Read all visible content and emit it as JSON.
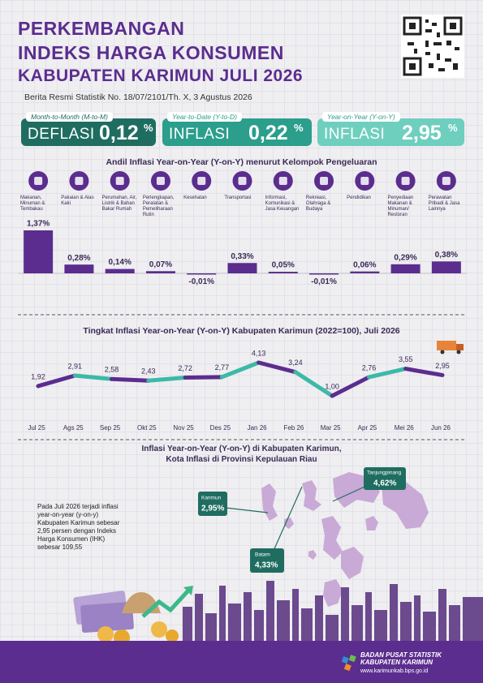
{
  "header": {
    "title_lines": [
      "PERKEMBANGAN",
      "INDEKS HARGA KONSUMEN",
      "KABUPATEN KARIMUN JULI 2026"
    ],
    "subtitle": "Berita Resmi Statistik No. 18/07/2101/Th. X, 3 Agustus 2026"
  },
  "indicators": [
    {
      "period": "Month-to-Month (M-to-M)",
      "status": "DEFLASI",
      "value": "0,12",
      "unit": "%"
    },
    {
      "period": "Year-to-Date (Y-to-D)",
      "status": "INFLASI",
      "value": "0,22",
      "unit": "%"
    },
    {
      "period": "Year-on-Year (Y-on-Y)",
      "status": "INFLASI",
      "value": "2,95",
      "unit": "%"
    }
  ],
  "chart_data": [
    {
      "type": "bar",
      "title": "Andil Inflasi Year-on-Year (Y-on-Y) menurut Kelompok Pengeluaran",
      "categories": [
        "Makanan, Minuman & Tembakau",
        "Pakaian & Alas Kaki",
        "Perumahan, Air, Listrik & Bahan Bakar Rumah",
        "Perlengkapan, Peralatan & Pemeliharaan Rutin",
        "Kesehatan",
        "Transportasi",
        "Informasi, Komunikasi & Jasa Keuangan",
        "Rekreasi, Olahraga & Budaya",
        "Pendidikan",
        "Penyediaan Makanan & Minuman/ Restoran",
        "Perawatan Pribadi & Jasa Lainnya"
      ],
      "values": [
        1.37,
        0.28,
        0.14,
        0.07,
        -0.01,
        0.33,
        0.05,
        -0.01,
        0.06,
        0.29,
        0.38
      ],
      "value_labels": [
        "1,37%",
        "0,28%",
        "0,14%",
        "0,07%",
        "-0,01%",
        "0,33%",
        "0,05%",
        "-0,01%",
        "0,06%",
        "0,29%",
        "0,38%"
      ],
      "color": "#5b2d8e"
    },
    {
      "type": "line",
      "title": "Tingkat Inflasi Year-on-Year (Y-on-Y) Kabupaten Karimun (2022=100), Juli 2026",
      "categories": [
        "Jul 25",
        "Ags 25",
        "Sep 25",
        "Okt 25",
        "Nov 25",
        "Des 25",
        "Jan 26",
        "Feb 26",
        "Mar 25",
        "Apr 25",
        "Mei 26",
        "Jun 26"
      ],
      "values": [
        1.92,
        2.91,
        2.58,
        2.43,
        2.72,
        2.77,
        4.13,
        3.24,
        1.0,
        2.76,
        3.55,
        2.95
      ],
      "value_labels": [
        "1,92",
        "2,91",
        "2,58",
        "2,43",
        "2,72",
        "2,77",
        "4,13",
        "3,24",
        "1,00",
        "2,76",
        "3,55",
        "2,95"
      ],
      "colors": [
        "#5b2d8e",
        "#3cb9a8"
      ]
    }
  ],
  "map": {
    "title_lines": [
      "Inflasi Year-on-Year (Y-on-Y) di Kabupaten Karimun,",
      "Kota Inflasi di Provinsi Kepulauan Riau"
    ],
    "callouts": [
      {
        "name": "Karimun",
        "value": "2,95%"
      },
      {
        "name": "Batam",
        "value": "4,33%"
      },
      {
        "name": "Tanjungpinang",
        "value": "4,62%"
      }
    ],
    "note": "Pada Juli 2026 terjadi inflasi year-on-year (y-on-y) Kabupaten Karimun sebesar 2,95 persen dengan Indeks Harga Konsumen (IHK) sebesar 109,55"
  },
  "footer": {
    "org_lines": [
      "BADAN PUSAT STATISTIK",
      "KABUPATEN KARIMUN"
    ],
    "website": "www.karimunkab.bps.go.id"
  }
}
